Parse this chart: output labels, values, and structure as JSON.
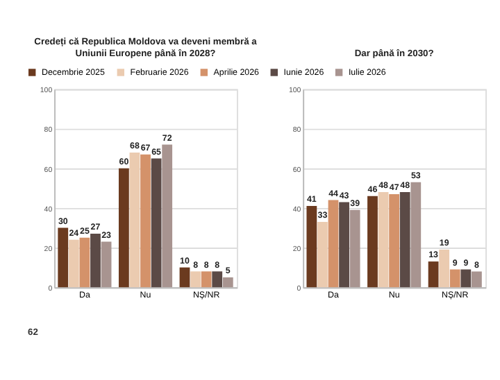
{
  "chart_data": [
    {
      "type": "bar",
      "title": "Credeți că Republica Moldova va deveni membră a\nUniunii Europene până în 2028?",
      "categories": [
        "Da",
        "Nu",
        "NȘ/NR"
      ],
      "series": [
        {
          "name": "Decembrie 2025",
          "color": "#6b3a1f",
          "values": [
            30,
            60,
            10
          ]
        },
        {
          "name": "Februarie 2026",
          "color": "#ebcbb0",
          "values": [
            24,
            68,
            8
          ]
        },
        {
          "name": "Aprilie 2026",
          "color": "#d4926a",
          "values": [
            25,
            67,
            8
          ]
        },
        {
          "name": "Iunie 2026",
          "color": "#5b4a46",
          "values": [
            27,
            65,
            8
          ]
        },
        {
          "name": "Iulie 2026",
          "color": "#a89490",
          "values": [
            23,
            72,
            5
          ]
        }
      ],
      "ylim": [
        0,
        100
      ],
      "yticks": [
        0,
        20,
        40,
        60,
        80,
        100
      ],
      "grid": "y",
      "data_labels": true,
      "legend": "top",
      "annotations": [
        "62"
      ]
    },
    {
      "type": "bar",
      "title": "Dar până în 2030?",
      "categories": [
        "Da",
        "Nu",
        "NȘ/NR"
      ],
      "series": [
        {
          "name": "Decembrie 2025",
          "color": "#6b3a1f",
          "values": [
            41,
            46,
            13
          ]
        },
        {
          "name": "Februarie 2026",
          "color": "#ebcbb0",
          "values": [
            33,
            48,
            19
          ]
        },
        {
          "name": "Aprilie 2026",
          "color": "#d4926a",
          "values": [
            44,
            47,
            9
          ]
        },
        {
          "name": "Iunie 2026",
          "color": "#5b4a46",
          "values": [
            43,
            48,
            9
          ]
        },
        {
          "name": "Iulie 2026",
          "color": "#a89490",
          "values": [
            39,
            53,
            8
          ]
        }
      ],
      "ylim": [
        0,
        100
      ],
      "yticks": [
        0,
        20,
        40,
        60,
        80,
        100
      ],
      "grid": "y",
      "data_labels": true,
      "legend": false
    }
  ]
}
